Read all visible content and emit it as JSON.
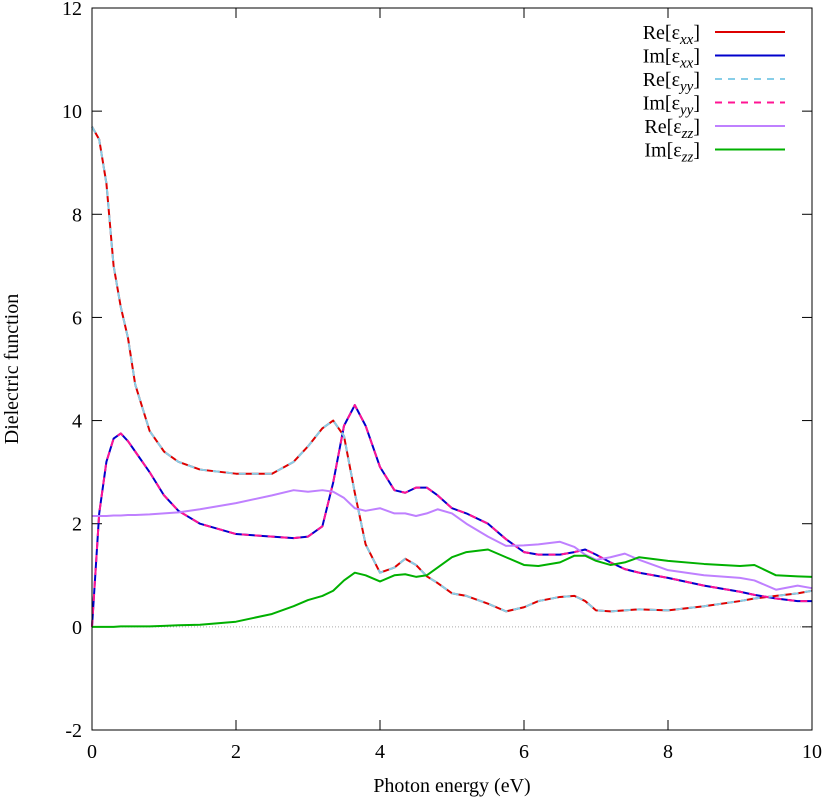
{
  "chart_data": {
    "type": "line",
    "xlabel": "Photon energy (eV)",
    "ylabel": "Dielectric function",
    "x": [
      0,
      0.1,
      0.2,
      0.3,
      0.4,
      0.5,
      0.6,
      0.8,
      1.0,
      1.2,
      1.5,
      2.0,
      2.5,
      2.8,
      3.0,
      3.2,
      3.35,
      3.5,
      3.65,
      3.8,
      4.0,
      4.2,
      4.35,
      4.5,
      4.65,
      4.8,
      5.0,
      5.2,
      5.5,
      5.75,
      6.0,
      6.2,
      6.5,
      6.7,
      6.85,
      7.0,
      7.2,
      7.4,
      7.6,
      8.0,
      8.5,
      9.0,
      9.2,
      9.5,
      9.8,
      10.0
    ],
    "series": [
      {
        "name": "Re[εxx]",
        "color": "#dd0000",
        "dashed": false,
        "values": [
          9.7,
          9.45,
          8.6,
          7.0,
          6.2,
          5.6,
          4.7,
          3.8,
          3.4,
          3.2,
          3.05,
          2.97,
          2.97,
          3.2,
          3.5,
          3.85,
          4.0,
          3.7,
          2.6,
          1.6,
          1.05,
          1.15,
          1.32,
          1.2,
          0.98,
          0.85,
          0.65,
          0.6,
          0.45,
          0.3,
          0.38,
          0.5,
          0.58,
          0.6,
          0.5,
          0.32,
          0.3,
          0.32,
          0.34,
          0.32,
          0.4,
          0.5,
          0.55,
          0.6,
          0.65,
          0.7
        ]
      },
      {
        "name": "Im[εxx]",
        "color": "#0000cc",
        "dashed": false,
        "values": [
          0,
          2.2,
          3.2,
          3.65,
          3.75,
          3.6,
          3.4,
          3.0,
          2.55,
          2.25,
          2.0,
          1.8,
          1.75,
          1.72,
          1.75,
          1.95,
          2.8,
          3.9,
          4.3,
          3.9,
          3.1,
          2.65,
          2.6,
          2.7,
          2.7,
          2.55,
          2.3,
          2.2,
          2.0,
          1.7,
          1.45,
          1.4,
          1.4,
          1.45,
          1.5,
          1.4,
          1.25,
          1.12,
          1.05,
          0.95,
          0.8,
          0.68,
          0.62,
          0.55,
          0.5,
          0.5
        ]
      },
      {
        "name": "Re[εyy]",
        "color": "#87cee8",
        "dashed": true,
        "values": [
          9.7,
          9.45,
          8.6,
          7.0,
          6.2,
          5.6,
          4.7,
          3.8,
          3.4,
          3.2,
          3.05,
          2.97,
          2.97,
          3.2,
          3.5,
          3.85,
          4.0,
          3.7,
          2.6,
          1.6,
          1.05,
          1.15,
          1.32,
          1.2,
          0.98,
          0.85,
          0.65,
          0.6,
          0.45,
          0.3,
          0.38,
          0.5,
          0.58,
          0.6,
          0.5,
          0.32,
          0.3,
          0.32,
          0.34,
          0.32,
          0.4,
          0.5,
          0.55,
          0.6,
          0.65,
          0.7
        ]
      },
      {
        "name": "Im[εyy]",
        "color": "#ff1493",
        "dashed": true,
        "values": [
          0,
          2.2,
          3.2,
          3.65,
          3.75,
          3.6,
          3.4,
          3.0,
          2.55,
          2.25,
          2.0,
          1.8,
          1.75,
          1.72,
          1.75,
          1.95,
          2.8,
          3.9,
          4.3,
          3.9,
          3.1,
          2.65,
          2.6,
          2.7,
          2.7,
          2.55,
          2.3,
          2.2,
          2.0,
          1.7,
          1.45,
          1.4,
          1.4,
          1.45,
          1.5,
          1.4,
          1.25,
          1.12,
          1.05,
          0.95,
          0.8,
          0.68,
          0.62,
          0.55,
          0.5,
          0.5
        ]
      },
      {
        "name": "Re[εzz]",
        "color": "#bf80ff",
        "dashed": false,
        "values": [
          2.15,
          2.15,
          2.15,
          2.16,
          2.16,
          2.17,
          2.17,
          2.18,
          2.2,
          2.22,
          2.28,
          2.4,
          2.55,
          2.65,
          2.62,
          2.65,
          2.62,
          2.5,
          2.3,
          2.25,
          2.3,
          2.2,
          2.2,
          2.15,
          2.2,
          2.28,
          2.2,
          2.0,
          1.75,
          1.57,
          1.58,
          1.6,
          1.65,
          1.55,
          1.4,
          1.3,
          1.35,
          1.42,
          1.3,
          1.1,
          1.0,
          0.95,
          0.9,
          0.72,
          0.8,
          0.75
        ]
      },
      {
        "name": "Im[εzz]",
        "color": "#00b000",
        "dashed": false,
        "values": [
          0,
          0,
          0,
          0,
          0.01,
          0.01,
          0.01,
          0.01,
          0.02,
          0.03,
          0.04,
          0.1,
          0.25,
          0.4,
          0.52,
          0.6,
          0.7,
          0.9,
          1.05,
          1.0,
          0.88,
          1.0,
          1.02,
          0.97,
          1.0,
          1.15,
          1.35,
          1.45,
          1.5,
          1.35,
          1.2,
          1.18,
          1.25,
          1.38,
          1.38,
          1.28,
          1.2,
          1.25,
          1.35,
          1.28,
          1.22,
          1.18,
          1.2,
          1.0,
          0.98,
          0.97
        ]
      }
    ],
    "xlim": [
      0,
      10
    ],
    "xticks": [
      0,
      2,
      4,
      6,
      8,
      10
    ],
    "ylim": [
      -2,
      12
    ],
    "yticks": [
      -2,
      0,
      2,
      4,
      6,
      8,
      10,
      12
    ],
    "zero_line": true,
    "legend": "top-right"
  }
}
